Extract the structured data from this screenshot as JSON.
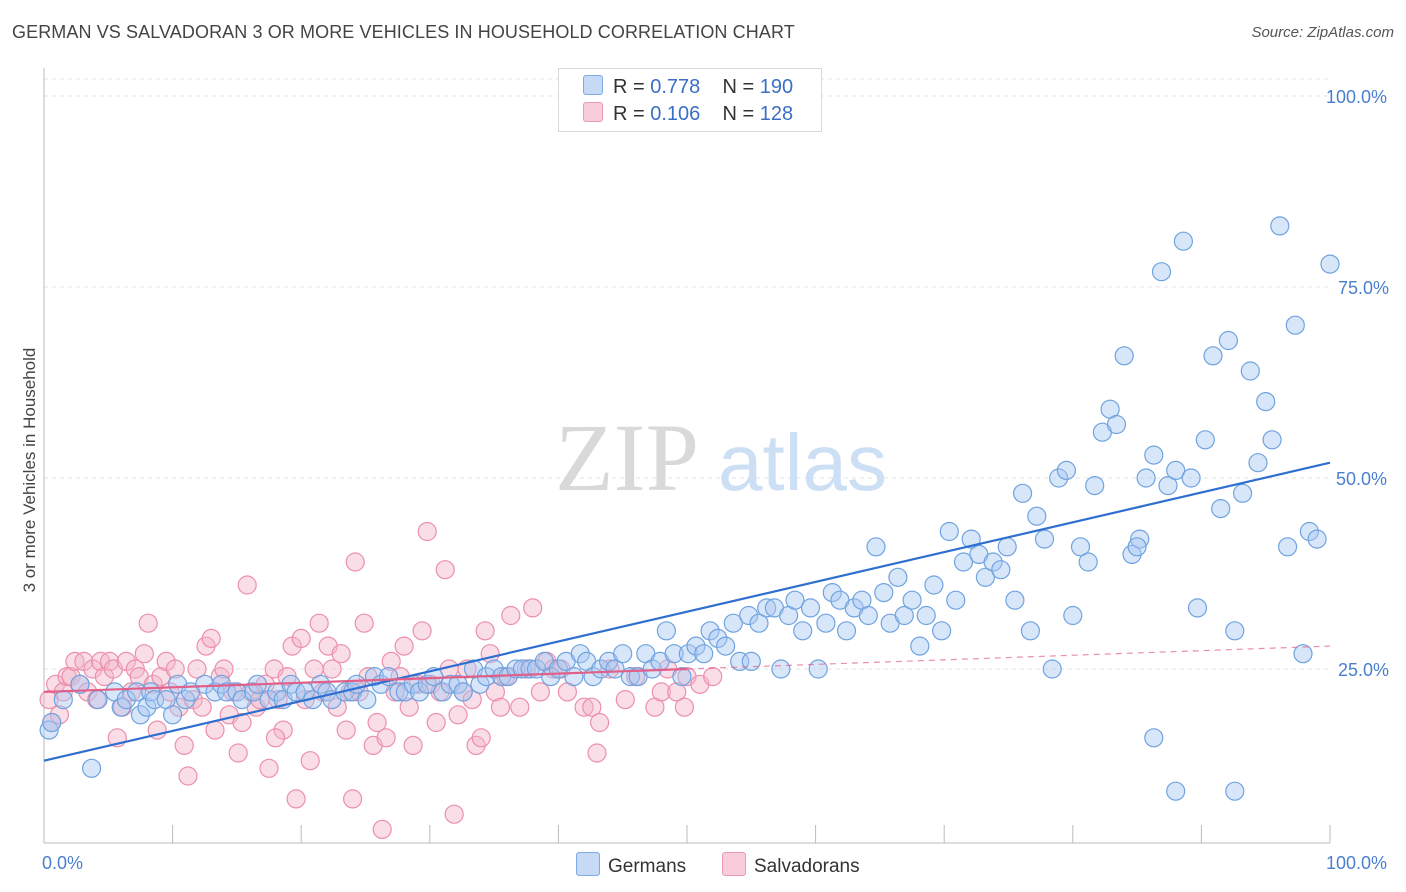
{
  "title": "GERMAN VS SALVADORAN 3 OR MORE VEHICLES IN HOUSEHOLD CORRELATION CHART",
  "source": "Source: ZipAtlas.com",
  "watermark": {
    "part1": "ZIP",
    "part2": "atlas"
  },
  "legend": {
    "rows": [
      {
        "r_label": "R = ",
        "r_value": "0.778",
        "n_label": "N = ",
        "n_value": "190",
        "color": "#a9c8f2"
      },
      {
        "r_label": "R = ",
        "r_value": "0.106",
        "n_label": "N = ",
        "n_value": "128",
        "color": "#f5b6c9"
      }
    ]
  },
  "bottom_legend": [
    {
      "label": "Germans",
      "color": "#a9c8f2"
    },
    {
      "label": "Salvadorans",
      "color": "#f5b6c9"
    }
  ],
  "chart_data": {
    "type": "scatter",
    "ylabel": "3 or more Vehicles in Household",
    "xlabel": "",
    "x_ticks": [
      "0.0%",
      "100.0%"
    ],
    "y_ticks": [
      "100.0%",
      "75.0%",
      "50.0%",
      "25.0%"
    ],
    "xlim": [
      0,
      100
    ],
    "ylim": [
      0,
      100
    ],
    "grid": "horizontal dashed",
    "legend_position": "top-center",
    "series": [
      {
        "name": "Germans",
        "color": "#6fa3e0",
        "fill": "#a9c8f2",
        "trend": {
          "x1": 0,
          "y1": 13,
          "x2": 100,
          "y2": 52,
          "style": "solid",
          "color": "#2f6fcf"
        },
        "points": [
          [
            0.4,
            17
          ],
          [
            0.6,
            18
          ],
          [
            1.5,
            21
          ],
          [
            2.8,
            23
          ],
          [
            3.7,
            12
          ],
          [
            4.2,
            21
          ],
          [
            5.5,
            22
          ],
          [
            6,
            20
          ],
          [
            6.4,
            21
          ],
          [
            7.2,
            22
          ],
          [
            7.5,
            19
          ],
          [
            8,
            20
          ],
          [
            8.3,
            22
          ],
          [
            8.6,
            21
          ],
          [
            9.5,
            21
          ],
          [
            10,
            19
          ],
          [
            10.4,
            23
          ],
          [
            11,
            21
          ],
          [
            11.4,
            22
          ],
          [
            12.5,
            23
          ],
          [
            13.3,
            22
          ],
          [
            13.8,
            23
          ],
          [
            14.2,
            22
          ],
          [
            15,
            22
          ],
          [
            15.4,
            21
          ],
          [
            16.3,
            22
          ],
          [
            16.6,
            23
          ],
          [
            17.5,
            21
          ],
          [
            18.1,
            22
          ],
          [
            18.6,
            21
          ],
          [
            19.2,
            23
          ],
          [
            19.6,
            22
          ],
          [
            20.3,
            22
          ],
          [
            20.9,
            21
          ],
          [
            21.5,
            23
          ],
          [
            22,
            22
          ],
          [
            22.4,
            21
          ],
          [
            23.4,
            22
          ],
          [
            24,
            22
          ],
          [
            24.3,
            23
          ],
          [
            25.1,
            21
          ],
          [
            25.7,
            24
          ],
          [
            26.2,
            23
          ],
          [
            26.8,
            24
          ],
          [
            27.6,
            22
          ],
          [
            28.1,
            22
          ],
          [
            28.7,
            23
          ],
          [
            29.2,
            22
          ],
          [
            29.8,
            23
          ],
          [
            30.3,
            24
          ],
          [
            31,
            22
          ],
          [
            31.6,
            23
          ],
          [
            32.2,
            23
          ],
          [
            32.6,
            22
          ],
          [
            33.4,
            25
          ],
          [
            33.9,
            23
          ],
          [
            34.4,
            24
          ],
          [
            35,
            25
          ],
          [
            35.6,
            24
          ],
          [
            36.1,
            24
          ],
          [
            36.7,
            25
          ],
          [
            37.2,
            25
          ],
          [
            37.8,
            25
          ],
          [
            38.3,
            25
          ],
          [
            38.9,
            26
          ],
          [
            39.4,
            24
          ],
          [
            40,
            25
          ],
          [
            40.6,
            26
          ],
          [
            41.2,
            24
          ],
          [
            41.7,
            27
          ],
          [
            42.2,
            26
          ],
          [
            42.7,
            24
          ],
          [
            43.3,
            25
          ],
          [
            43.9,
            26
          ],
          [
            44.4,
            25
          ],
          [
            45,
            27
          ],
          [
            45.6,
            24
          ],
          [
            46.2,
            24
          ],
          [
            46.8,
            27
          ],
          [
            47.3,
            25
          ],
          [
            47.9,
            26
          ],
          [
            48.4,
            30
          ],
          [
            49,
            27
          ],
          [
            49.6,
            24
          ],
          [
            50.1,
            27
          ],
          [
            50.7,
            28
          ],
          [
            51.3,
            27
          ],
          [
            51.8,
            30
          ],
          [
            52.4,
            29
          ],
          [
            53,
            28
          ],
          [
            53.6,
            31
          ],
          [
            54.1,
            26
          ],
          [
            54.8,
            32
          ],
          [
            55,
            26
          ],
          [
            55.6,
            31
          ],
          [
            56.2,
            33
          ],
          [
            56.8,
            33
          ],
          [
            57.3,
            25
          ],
          [
            57.9,
            32
          ],
          [
            58.4,
            34
          ],
          [
            59,
            30
          ],
          [
            59.6,
            33
          ],
          [
            60.2,
            25
          ],
          [
            60.8,
            31
          ],
          [
            61.3,
            35
          ],
          [
            61.9,
            34
          ],
          [
            62.4,
            30
          ],
          [
            63,
            33
          ],
          [
            63.6,
            34
          ],
          [
            64.1,
            32
          ],
          [
            64.7,
            41
          ],
          [
            65.3,
            35
          ],
          [
            65.8,
            31
          ],
          [
            66.4,
            37
          ],
          [
            66.9,
            32
          ],
          [
            67.5,
            34
          ],
          [
            68.1,
            28
          ],
          [
            68.6,
            32
          ],
          [
            69.2,
            36
          ],
          [
            69.8,
            30
          ],
          [
            70.4,
            43
          ],
          [
            70.9,
            34
          ],
          [
            71.5,
            39
          ],
          [
            72.1,
            42
          ],
          [
            72.7,
            40
          ],
          [
            73.2,
            37
          ],
          [
            73.8,
            39
          ],
          [
            74.4,
            38
          ],
          [
            74.9,
            41
          ],
          [
            75.5,
            34
          ],
          [
            76.1,
            48
          ],
          [
            76.7,
            30
          ],
          [
            77.2,
            45
          ],
          [
            77.8,
            42
          ],
          [
            78.4,
            25
          ],
          [
            78.9,
            50
          ],
          [
            79.5,
            51
          ],
          [
            80,
            32
          ],
          [
            80.6,
            41
          ],
          [
            81.2,
            39
          ],
          [
            81.7,
            49
          ],
          [
            82.3,
            56
          ],
          [
            82.9,
            59
          ],
          [
            83.4,
            57
          ],
          [
            84,
            66
          ],
          [
            84.6,
            40
          ],
          [
            85.2,
            42
          ],
          [
            85.7,
            50
          ],
          [
            86.3,
            53
          ],
          [
            86.9,
            77
          ],
          [
            87.4,
            49
          ],
          [
            88,
            51
          ],
          [
            88.6,
            81
          ],
          [
            89.2,
            50
          ],
          [
            89.7,
            33
          ],
          [
            90.3,
            55
          ],
          [
            90.9,
            66
          ],
          [
            91.5,
            46
          ],
          [
            92.1,
            68
          ],
          [
            92.6,
            30
          ],
          [
            93.2,
            48
          ],
          [
            93.8,
            64
          ],
          [
            94.4,
            52
          ],
          [
            95,
            60
          ],
          [
            95.5,
            55
          ],
          [
            96.1,
            83
          ],
          [
            96.7,
            41
          ],
          [
            97.3,
            70
          ],
          [
            97.9,
            27
          ],
          [
            98.4,
            43
          ],
          [
            99,
            42
          ],
          [
            100,
            78
          ],
          [
            85,
            41
          ],
          [
            86.3,
            16
          ],
          [
            88,
            9
          ],
          [
            92.6,
            9
          ]
        ]
      },
      {
        "name": "Salvadorans",
        "color": "#ec8faa",
        "fill": "#f5b6c9",
        "trend": {
          "x1": 0,
          "y1": 22,
          "x2": 100,
          "y2": 28,
          "style": "solid-then-dashed",
          "solid_until": 50,
          "color": "#e0608a"
        },
        "points": [
          [
            0.4,
            21
          ],
          [
            0.6,
            18
          ],
          [
            0.9,
            23
          ],
          [
            1.2,
            19
          ],
          [
            1.5,
            22
          ],
          [
            1.8,
            24
          ],
          [
            2.1,
            24
          ],
          [
            2.4,
            26
          ],
          [
            2.8,
            23
          ],
          [
            3.1,
            26
          ],
          [
            3.4,
            22
          ],
          [
            3.8,
            25
          ],
          [
            4.1,
            21
          ],
          [
            4.4,
            26
          ],
          [
            4.7,
            24
          ],
          [
            5.1,
            26
          ],
          [
            5.4,
            25
          ],
          [
            5.7,
            16
          ],
          [
            6.1,
            20
          ],
          [
            6.4,
            26
          ],
          [
            6.8,
            22
          ],
          [
            7.1,
            25
          ],
          [
            7.4,
            24
          ],
          [
            7.8,
            27
          ],
          [
            8.1,
            31
          ],
          [
            8.5,
            23
          ],
          [
            8.8,
            17
          ],
          [
            9.1,
            24
          ],
          [
            9.5,
            26
          ],
          [
            9.8,
            22
          ],
          [
            10.2,
            25
          ],
          [
            10.5,
            20
          ],
          [
            10.9,
            15
          ],
          [
            11.2,
            11
          ],
          [
            11.6,
            21
          ],
          [
            11.9,
            25
          ],
          [
            12.3,
            20
          ],
          [
            12.6,
            28
          ],
          [
            13,
            29
          ],
          [
            13.3,
            17
          ],
          [
            13.7,
            24
          ],
          [
            14,
            25
          ],
          [
            14.4,
            19
          ],
          [
            14.7,
            22
          ],
          [
            15.1,
            14
          ],
          [
            15.4,
            18
          ],
          [
            15.8,
            36
          ],
          [
            16.1,
            22
          ],
          [
            16.5,
            20
          ],
          [
            16.8,
            21
          ],
          [
            17.2,
            23
          ],
          [
            17.5,
            12
          ],
          [
            17.9,
            25
          ],
          [
            18.2,
            21
          ],
          [
            18.6,
            17
          ],
          [
            18.9,
            24
          ],
          [
            19.3,
            28
          ],
          [
            19.6,
            8
          ],
          [
            20,
            29
          ],
          [
            20.3,
            21
          ],
          [
            20.7,
            13
          ],
          [
            21,
            25
          ],
          [
            21.4,
            31
          ],
          [
            21.7,
            22
          ],
          [
            22.1,
            28
          ],
          [
            22.4,
            25
          ],
          [
            22.8,
            20
          ],
          [
            23.1,
            27
          ],
          [
            23.5,
            17
          ],
          [
            23.8,
            22
          ],
          [
            24.2,
            39
          ],
          [
            24.5,
            22
          ],
          [
            24.9,
            31
          ],
          [
            25.2,
            24
          ],
          [
            25.6,
            15
          ],
          [
            25.9,
            18
          ],
          [
            26.3,
            4
          ],
          [
            26.6,
            16
          ],
          [
            27,
            26
          ],
          [
            27.3,
            22
          ],
          [
            27.7,
            24
          ],
          [
            28,
            28
          ],
          [
            28.4,
            20
          ],
          [
            28.7,
            15
          ],
          [
            29.1,
            23
          ],
          [
            29.4,
            30
          ],
          [
            29.8,
            43
          ],
          [
            30.1,
            23
          ],
          [
            30.5,
            18
          ],
          [
            30.8,
            22
          ],
          [
            31.2,
            38
          ],
          [
            31.5,
            25
          ],
          [
            31.9,
            6
          ],
          [
            32.2,
            19
          ],
          [
            32.6,
            22
          ],
          [
            32.9,
            25
          ],
          [
            33.3,
            21
          ],
          [
            33.6,
            15
          ],
          [
            34,
            16
          ],
          [
            34.3,
            30
          ],
          [
            34.7,
            27
          ],
          [
            35.1,
            22
          ],
          [
            35.5,
            20
          ],
          [
            35.9,
            24
          ],
          [
            36.3,
            32
          ],
          [
            37,
            20
          ],
          [
            37.5,
            25
          ],
          [
            38,
            33
          ],
          [
            38.6,
            22
          ],
          [
            39.1,
            26
          ],
          [
            39.6,
            25
          ],
          [
            40.2,
            25
          ],
          [
            40.7,
            22
          ],
          [
            42,
            20
          ],
          [
            42.6,
            20
          ],
          [
            43.2,
            18
          ],
          [
            44,
            25
          ],
          [
            45.2,
            21
          ],
          [
            46,
            24
          ],
          [
            47.5,
            20
          ],
          [
            48,
            22
          ],
          [
            48.5,
            25
          ],
          [
            49.2,
            22
          ],
          [
            49.8,
            20
          ],
          [
            50,
            24
          ],
          [
            51,
            23
          ],
          [
            52,
            24
          ],
          [
            43,
            14
          ],
          [
            24,
            8
          ],
          [
            18,
            16
          ]
        ]
      }
    ]
  }
}
